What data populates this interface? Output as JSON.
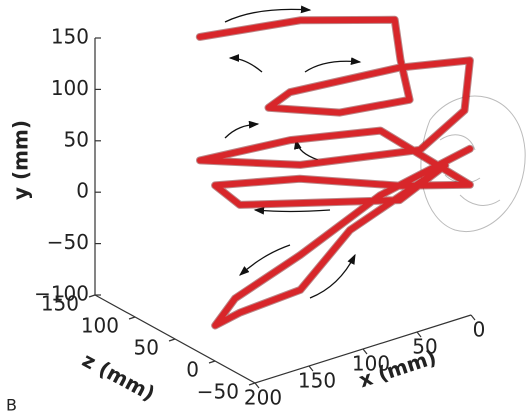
{
  "chart_data": {
    "type": "line3d",
    "xlabel": "x (mm)",
    "ylabel": "y (mm)",
    "zlabel": "z (mm)",
    "panel_label": "B",
    "xlim": [
      0,
      200
    ],
    "ylim": [
      -100,
      150
    ],
    "zlim": [
      -50,
      150
    ],
    "xticks": [
      0,
      50,
      100,
      150,
      200
    ],
    "yticks": [
      {
        "value": -100,
        "label": "−100"
      },
      {
        "value": -50,
        "label": "−50"
      },
      0,
      50,
      100,
      150
    ],
    "zticks": [
      {
        "value": -50,
        "label": "−50"
      },
      0,
      50,
      100,
      150
    ],
    "series": [
      {
        "color": "#d8262a",
        "x": [
          103,
          47,
          4,
          6,
          5,
          40,
          69,
          64,
          0,
          1,
          6,
          25,
          84,
          125,
          71,
          32,
          1,
          29,
          77,
          111,
          103,
          29,
          9,
          75,
          121,
          162,
          185,
          174,
          121,
          62,
          1
        ],
        "y": [
          119,
          138,
          150,
          116,
          81,
          63,
          56,
          78,
          102,
          148,
          101,
          56,
          31,
          19,
          38,
          60,
          27,
          14,
          11,
          -10,
          -23,
          0,
          40,
          -14,
          -57,
          -74,
          -79,
          -52,
          -23,
          24,
          62
        ],
        "z": [
          150,
          100,
          40,
          30,
          20,
          60,
          110,
          90,
          40,
          -50,
          -50,
          -20,
          50,
          120,
          80,
          20,
          -50,
          0,
          60,
          120,
          100,
          0,
          -30,
          0,
          0,
          20,
          20,
          10,
          0,
          -20,
          -50
        ]
      }
    ]
  }
}
